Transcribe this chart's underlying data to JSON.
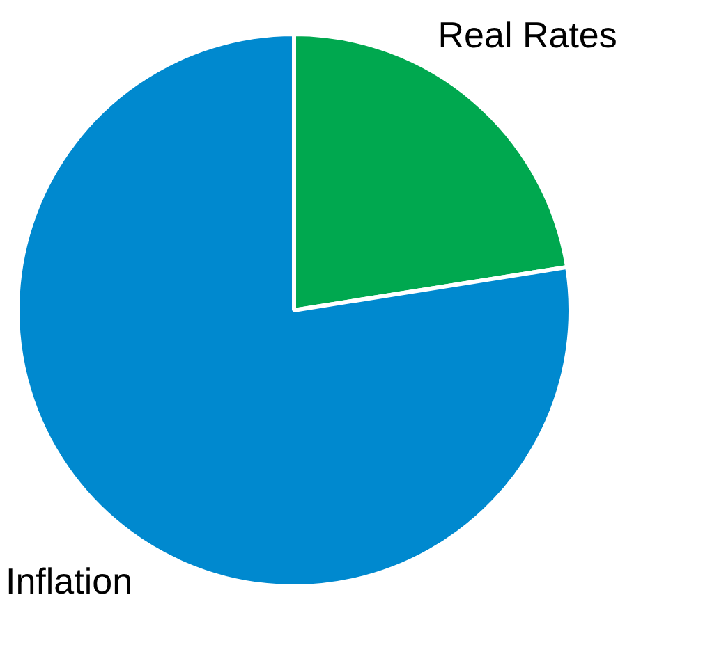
{
  "chart_data": {
    "type": "pie",
    "categories": [
      "Real Rates",
      "Inflation"
    ],
    "values": [
      22.5,
      77.5
    ],
    "colors": [
      "#00a84f",
      "#0089cf"
    ],
    "legend": false
  }
}
